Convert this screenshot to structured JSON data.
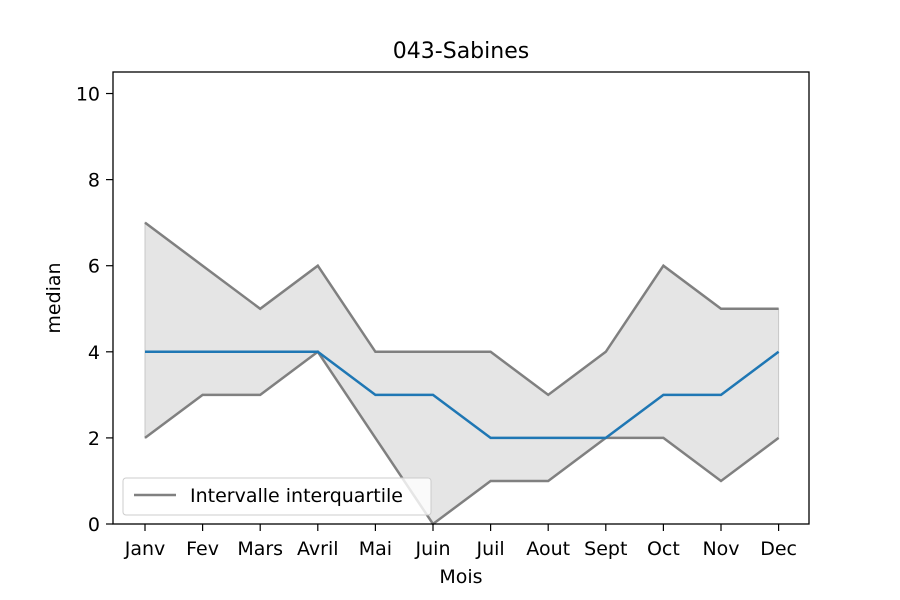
{
  "chart_data": {
    "type": "line",
    "title": "043-Sabines",
    "xlabel": "Mois",
    "ylabel": "median",
    "categories": [
      "Janv",
      "Fev",
      "Mars",
      "Avril",
      "Mai",
      "Juin",
      "Juil",
      "Aout",
      "Sept",
      "Oct",
      "Nov",
      "Dec"
    ],
    "ylim": [
      0,
      10.5
    ],
    "yticks": [
      0,
      2,
      4,
      6,
      8,
      10
    ],
    "grid": false,
    "legend_position": "bottom-left",
    "series": [
      {
        "name": "",
        "role": "median",
        "color": "#1f77b4",
        "values": [
          4,
          4,
          4,
          4,
          3,
          3,
          2,
          2,
          2,
          3,
          3,
          4
        ]
      }
    ],
    "interquartile": {
      "name": "Intervalle interquartile",
      "color": "#808080",
      "fill_color": "#e5e5e5",
      "q1": [
        2,
        3,
        3,
        4,
        2,
        0,
        1,
        1,
        2,
        2,
        1,
        2
      ],
      "q3": [
        7,
        6,
        5,
        6,
        4,
        4,
        4,
        3,
        4,
        6,
        5,
        5
      ]
    }
  }
}
